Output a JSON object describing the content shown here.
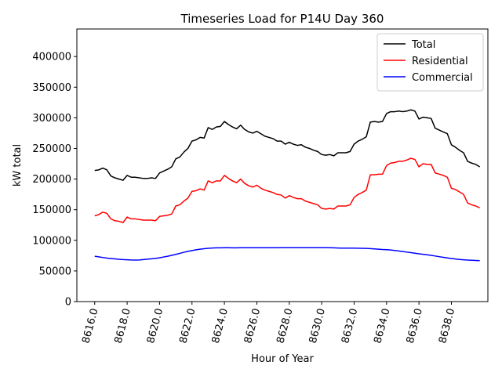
{
  "chart_data": {
    "type": "line",
    "title": "Timeseries Load for P14U   Day 360",
    "xlabel": "Hour of Year",
    "ylabel": "kW total",
    "xlim": [
      8614.9,
      8640.25
    ],
    "ylim": [
      0,
      445000
    ],
    "x_ticks": [
      8616,
      8618,
      8620,
      8622,
      8624,
      8626,
      8628,
      8630,
      8632,
      8634,
      8636,
      8638
    ],
    "x_tick_labels": [
      "8616.0",
      "8618.0",
      "8620.0",
      "8622.0",
      "8624.0",
      "8626.0",
      "8628.0",
      "8630.0",
      "8632.0",
      "8634.0",
      "8636.0",
      "8638.0"
    ],
    "y_ticks": [
      0,
      50000,
      100000,
      150000,
      200000,
      250000,
      300000,
      350000,
      400000
    ],
    "y_tick_labels": [
      "0",
      "50000",
      "100000",
      "150000",
      "200000",
      "250000",
      "300000",
      "350000",
      "400000"
    ],
    "grid": false,
    "legend_position": "top-right",
    "x": [
      8616.0,
      8616.25,
      8616.5,
      8616.75,
      8617.0,
      8617.25,
      8617.5,
      8617.75,
      8618.0,
      8618.25,
      8618.5,
      8618.75,
      8619.0,
      8619.25,
      8619.5,
      8619.75,
      8620.0,
      8620.25,
      8620.5,
      8620.75,
      8621.0,
      8621.25,
      8621.5,
      8621.75,
      8622.0,
      8622.25,
      8622.5,
      8622.75,
      8623.0,
      8623.25,
      8623.5,
      8623.75,
      8624.0,
      8624.25,
      8624.5,
      8624.75,
      8625.0,
      8625.25,
      8625.5,
      8625.75,
      8626.0,
      8626.25,
      8626.5,
      8626.75,
      8627.0,
      8627.25,
      8627.5,
      8627.75,
      8628.0,
      8628.25,
      8628.5,
      8628.75,
      8629.0,
      8629.25,
      8629.5,
      8629.75,
      8630.0,
      8630.25,
      8630.5,
      8630.75,
      8631.0,
      8631.25,
      8631.5,
      8631.75,
      8632.0,
      8632.25,
      8632.5,
      8632.75,
      8633.0,
      8633.25,
      8633.5,
      8633.75,
      8634.0,
      8634.25,
      8634.5,
      8634.75,
      8635.0,
      8635.25,
      8635.5,
      8635.75,
      8636.0,
      8636.25,
      8636.5,
      8636.75,
      8637.0,
      8637.25,
      8637.5,
      8637.75,
      8638.0,
      8638.25,
      8638.5,
      8638.75,
      8639.0,
      8639.25,
      8639.5,
      8639.75
    ],
    "series": [
      {
        "name": "Total",
        "color": "#000000",
        "values": [
          214000,
          215000,
          218000,
          215000,
          205000,
          202000,
          200000,
          198000,
          206000,
          203000,
          203000,
          202000,
          201000,
          201000,
          202000,
          201000,
          210000,
          213000,
          216000,
          220000,
          233000,
          236000,
          244000,
          250000,
          262000,
          264000,
          268000,
          267000,
          284000,
          281000,
          285000,
          286000,
          294000,
          289000,
          285000,
          282000,
          288000,
          281000,
          277000,
          275000,
          278000,
          274000,
          270000,
          268000,
          266000,
          262000,
          262000,
          257000,
          260000,
          257000,
          255000,
          256000,
          252000,
          250000,
          247000,
          245000,
          240000,
          239000,
          240000,
          238000,
          243000,
          243000,
          243000,
          245000,
          257000,
          262000,
          265000,
          269000,
          293000,
          294000,
          293000,
          294000,
          307000,
          310000,
          310000,
          311000,
          310000,
          311000,
          313000,
          311000,
          298000,
          301000,
          300000,
          299000,
          283000,
          280000,
          277000,
          274000,
          256000,
          252000,
          247000,
          243000,
          229000,
          226000,
          224000,
          220000
        ]
      },
      {
        "name": "Residential",
        "color": "#ff0000",
        "values": [
          140000,
          142000,
          146000,
          144000,
          135000,
          132000,
          131000,
          129000,
          138000,
          135000,
          135000,
          134000,
          133000,
          133000,
          133000,
          132000,
          139000,
          140000,
          141000,
          143000,
          156000,
          158000,
          164000,
          169000,
          180000,
          181000,
          184000,
          182000,
          197000,
          194000,
          197000,
          197000,
          206000,
          201000,
          197000,
          194000,
          200000,
          193000,
          189000,
          187000,
          190000,
          185000,
          182000,
          180000,
          178000,
          175000,
          174000,
          169000,
          173000,
          170000,
          168000,
          168000,
          164000,
          162000,
          160000,
          158000,
          152000,
          151000,
          152000,
          151000,
          156000,
          156000,
          156000,
          158000,
          170000,
          175000,
          178000,
          182000,
          207000,
          207000,
          208000,
          208000,
          222000,
          226000,
          227000,
          229000,
          229000,
          231000,
          234000,
          232000,
          220000,
          225000,
          224000,
          224000,
          210000,
          208000,
          206000,
          203000,
          185000,
          183000,
          179000,
          175000,
          161000,
          158000,
          156000,
          153000
        ]
      },
      {
        "name": "Commercial",
        "color": "#0000ff",
        "values": [
          74000,
          73000,
          72000,
          71000,
          70300,
          69700,
          69000,
          68500,
          68200,
          67900,
          67800,
          67900,
          68500,
          69200,
          69800,
          70500,
          71500,
          72800,
          74000,
          75500,
          77000,
          78700,
          80500,
          82000,
          83300,
          84500,
          85500,
          86300,
          87000,
          87500,
          87700,
          87800,
          87900,
          87900,
          87800,
          87800,
          87900,
          87900,
          87900,
          87900,
          87900,
          87900,
          87900,
          87900,
          87900,
          87900,
          88000,
          88000,
          88000,
          88000,
          88000,
          88000,
          88000,
          88000,
          88000,
          88000,
          88000,
          88000,
          87900,
          87800,
          87500,
          87300,
          87200,
          87200,
          87200,
          87100,
          87000,
          86800,
          86400,
          86000,
          85500,
          85000,
          84700,
          84300,
          83400,
          82600,
          81700,
          80800,
          79900,
          79000,
          78000,
          77200,
          76400,
          75500,
          74400,
          73300,
          72300,
          71300,
          70400,
          69500,
          68800,
          68200,
          67700,
          67400,
          67100,
          66800
        ]
      }
    ]
  }
}
